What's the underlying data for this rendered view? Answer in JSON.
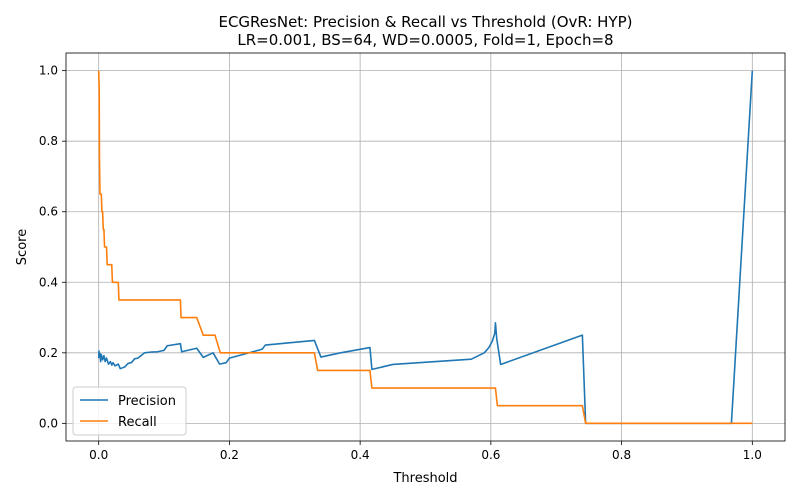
{
  "chart_data": {
    "type": "line",
    "title": "ECGResNet: Precision & Recall vs Threshold (OvR: HYP)",
    "subtitle": "LR=0.001, BS=64, WD=0.0005, Fold=1, Epoch=8",
    "xlabel": "Threshold",
    "ylabel": "Score",
    "xlim": [
      -0.05,
      1.05
    ],
    "ylim": [
      -0.05,
      1.05
    ],
    "xticks": [
      0.0,
      0.2,
      0.4,
      0.6,
      0.8,
      1.0
    ],
    "xtick_labels": [
      "0.0",
      "0.2",
      "0.4",
      "0.6",
      "0.8",
      "1.0"
    ],
    "yticks": [
      0.0,
      0.2,
      0.4,
      0.6,
      0.8,
      1.0
    ],
    "ytick_labels": [
      "0.0",
      "0.2",
      "0.4",
      "0.6",
      "0.8",
      "1.0"
    ],
    "grid": true,
    "legend_position": "lower-left",
    "series": [
      {
        "name": "Precision",
        "color": "#1f77b4",
        "points": [
          [
            0.0,
            0.185
          ],
          [
            0.0005,
            0.205
          ],
          [
            0.001,
            0.19
          ],
          [
            0.002,
            0.198
          ],
          [
            0.003,
            0.175
          ],
          [
            0.004,
            0.195
          ],
          [
            0.006,
            0.18
          ],
          [
            0.008,
            0.192
          ],
          [
            0.01,
            0.175
          ],
          [
            0.012,
            0.185
          ],
          [
            0.015,
            0.168
          ],
          [
            0.018,
            0.175
          ],
          [
            0.02,
            0.165
          ],
          [
            0.022,
            0.172
          ],
          [
            0.025,
            0.163
          ],
          [
            0.03,
            0.168
          ],
          [
            0.033,
            0.155
          ],
          [
            0.04,
            0.16
          ],
          [
            0.045,
            0.17
          ],
          [
            0.05,
            0.172
          ],
          [
            0.055,
            0.183
          ],
          [
            0.06,
            0.185
          ],
          [
            0.07,
            0.2
          ],
          [
            0.08,
            0.202
          ],
          [
            0.09,
            0.203
          ],
          [
            0.1,
            0.207
          ],
          [
            0.105,
            0.22
          ],
          [
            0.125,
            0.226
          ],
          [
            0.127,
            0.203
          ],
          [
            0.15,
            0.213
          ],
          [
            0.16,
            0.187
          ],
          [
            0.175,
            0.2
          ],
          [
            0.185,
            0.168
          ],
          [
            0.195,
            0.172
          ],
          [
            0.2,
            0.185
          ],
          [
            0.25,
            0.21
          ],
          [
            0.255,
            0.222
          ],
          [
            0.33,
            0.235
          ],
          [
            0.34,
            0.188
          ],
          [
            0.37,
            0.2
          ],
          [
            0.415,
            0.215
          ],
          [
            0.418,
            0.153
          ],
          [
            0.45,
            0.167
          ],
          [
            0.57,
            0.182
          ],
          [
            0.59,
            0.2
          ],
          [
            0.597,
            0.215
          ],
          [
            0.602,
            0.232
          ],
          [
            0.606,
            0.255
          ],
          [
            0.607,
            0.285
          ],
          [
            0.609,
            0.24
          ],
          [
            0.615,
            0.167
          ],
          [
            0.74,
            0.25
          ],
          [
            0.745,
            0.0
          ],
          [
            0.968,
            0.0
          ],
          [
            1.0,
            1.0
          ]
        ]
      },
      {
        "name": "Recall",
        "color": "#ff7f0e",
        "points": [
          [
            0.0,
            1.0
          ],
          [
            0.0008,
            0.95
          ],
          [
            0.0012,
            0.75
          ],
          [
            0.002,
            0.65
          ],
          [
            0.004,
            0.65
          ],
          [
            0.005,
            0.6
          ],
          [
            0.006,
            0.6
          ],
          [
            0.007,
            0.55
          ],
          [
            0.008,
            0.55
          ],
          [
            0.009,
            0.5
          ],
          [
            0.012,
            0.5
          ],
          [
            0.013,
            0.45
          ],
          [
            0.02,
            0.45
          ],
          [
            0.021,
            0.4
          ],
          [
            0.03,
            0.4
          ],
          [
            0.031,
            0.35
          ],
          [
            0.125,
            0.35
          ],
          [
            0.126,
            0.3
          ],
          [
            0.15,
            0.3
          ],
          [
            0.16,
            0.25
          ],
          [
            0.178,
            0.25
          ],
          [
            0.186,
            0.2
          ],
          [
            0.33,
            0.2
          ],
          [
            0.335,
            0.15
          ],
          [
            0.415,
            0.15
          ],
          [
            0.418,
            0.1
          ],
          [
            0.607,
            0.1
          ],
          [
            0.61,
            0.05
          ],
          [
            0.74,
            0.05
          ],
          [
            0.745,
            0.0
          ],
          [
            1.0,
            0.0
          ]
        ]
      }
    ]
  }
}
